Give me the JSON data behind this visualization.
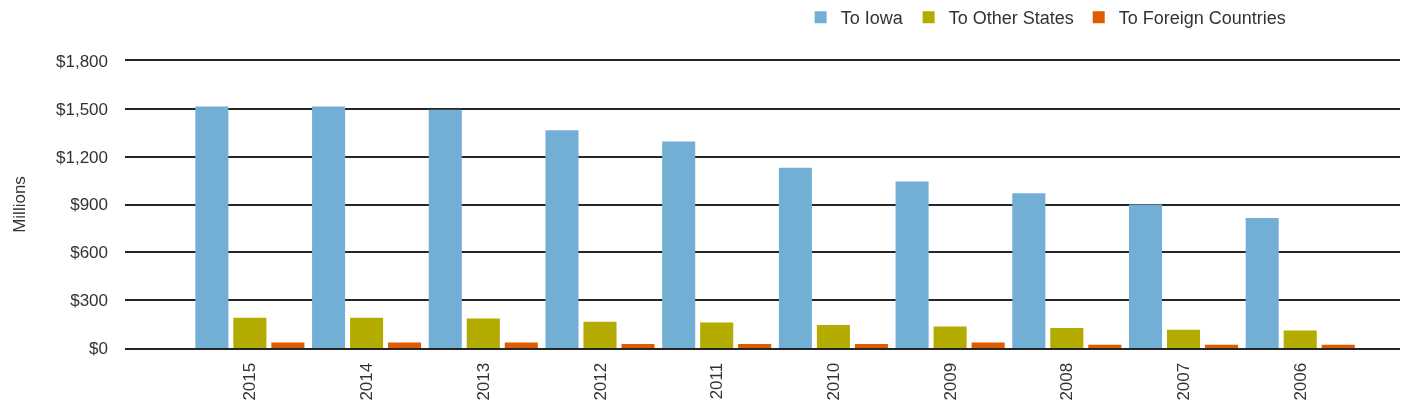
{
  "chart_data": {
    "type": "bar",
    "ylabel": "Millions",
    "categories": [
      "2015",
      "2014",
      "2013",
      "2012",
      "2011",
      "2010",
      "2009",
      "2008",
      "2007",
      "2006"
    ],
    "series": [
      {
        "name": "To Iowa",
        "color": "#73afd5",
        "values": [
          1515,
          1515,
          1495,
          1365,
          1295,
          1130,
          1045,
          970,
          900,
          815
        ]
      },
      {
        "name": "To Other States",
        "color": "#b4ab00",
        "values": [
          190,
          190,
          185,
          165,
          160,
          145,
          135,
          125,
          115,
          110
        ]
      },
      {
        "name": "To Foreign Countries",
        "color": "#df5b00",
        "values": [
          35,
          35,
          35,
          25,
          25,
          25,
          35,
          20,
          20,
          20
        ]
      }
    ],
    "ylim": [
      0,
      1800
    ],
    "yticks": [
      {
        "value": 0,
        "label": "$0"
      },
      {
        "value": 300,
        "label": "$300"
      },
      {
        "value": 600,
        "label": "$600"
      },
      {
        "value": 900,
        "label": "$900"
      },
      {
        "value": 1200,
        "label": "$1,200"
      },
      {
        "value": 1500,
        "label": "$1,500"
      },
      {
        "value": 1800,
        "label": "$1,800"
      }
    ],
    "grid": "y",
    "legend": "top right"
  }
}
